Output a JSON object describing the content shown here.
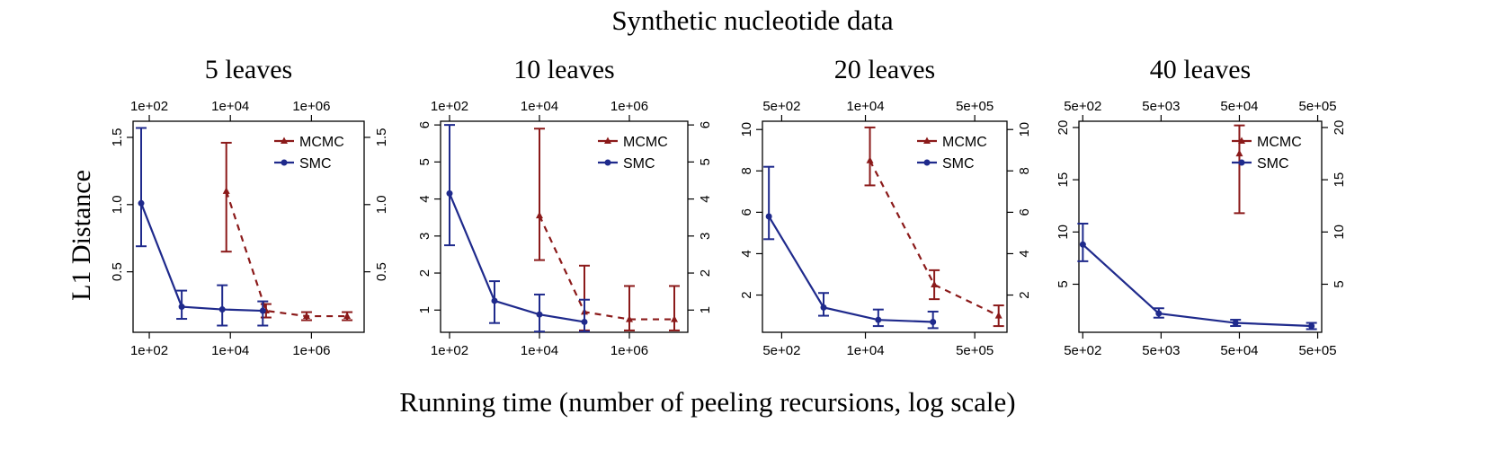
{
  "figure": {
    "title": "Synthetic nucleotide data",
    "ylabel": "L1 Distance",
    "xlabel": "Running time (number of peeling recursions, log scale)"
  },
  "colors": {
    "mcmc": "#8B1A1A",
    "smc": "#1F2A8C",
    "axis": "#000000"
  },
  "chart_data": [
    {
      "type": "line",
      "title": "5 leaves",
      "xscale": "log",
      "xlim": [
        1.6,
        7.3
      ],
      "ylim": [
        0.05,
        1.62
      ],
      "x_ticks": [
        2,
        4,
        6
      ],
      "x_tick_labels": [
        "1e+02",
        "1e+04",
        "1e+06"
      ],
      "y_ticks": [
        0.5,
        1.0,
        1.5
      ],
      "y_tick_labels": [
        "0.5",
        "1.0",
        "1.5"
      ],
      "legend": "top-right",
      "series": [
        {
          "name": "MCMC",
          "line": "dashed",
          "marker": "triangle",
          "x": [
            3.9,
            4.88,
            5.88,
            6.88
          ],
          "y": [
            1.1,
            0.21,
            0.17,
            0.17
          ],
          "err_low": [
            0.65,
            0.16,
            0.14,
            0.14
          ],
          "err_high": [
            1.46,
            0.26,
            0.2,
            0.2
          ]
        },
        {
          "name": "SMC",
          "line": "solid",
          "marker": "circle",
          "x": [
            1.8,
            2.8,
            3.8,
            4.8
          ],
          "y": [
            1.01,
            0.24,
            0.22,
            0.21
          ],
          "err_low": [
            0.69,
            0.15,
            0.1,
            0.1
          ],
          "err_high": [
            1.57,
            0.36,
            0.4,
            0.28
          ]
        }
      ]
    },
    {
      "type": "line",
      "title": "10 leaves",
      "xscale": "log",
      "xlim": [
        1.8,
        7.3
      ],
      "ylim": [
        0.4,
        6.1
      ],
      "x_ticks": [
        2,
        4,
        6
      ],
      "x_tick_labels": [
        "1e+02",
        "1e+04",
        "1e+06"
      ],
      "y_ticks": [
        1,
        2,
        3,
        4,
        5,
        6
      ],
      "y_tick_labels": [
        "1",
        "2",
        "3",
        "4",
        "5",
        "6"
      ],
      "legend": "top-right",
      "series": [
        {
          "name": "MCMC",
          "line": "dashed",
          "marker": "triangle",
          "x": [
            4,
            5,
            6,
            7
          ],
          "y": [
            3.55,
            0.95,
            0.75,
            0.75
          ],
          "err_low": [
            2.35,
            0.45,
            0.45,
            0.45
          ],
          "err_high": [
            5.9,
            2.2,
            1.65,
            1.65
          ]
        },
        {
          "name": "SMC",
          "line": "solid",
          "marker": "circle",
          "x": [
            2,
            3,
            4,
            5
          ],
          "y": [
            4.15,
            1.25,
            0.88,
            0.68
          ],
          "err_low": [
            2.75,
            0.65,
            0.42,
            0.42
          ],
          "err_high": [
            6.0,
            1.78,
            1.42,
            1.28
          ]
        }
      ]
    },
    {
      "type": "line",
      "title": "20 leaves",
      "xscale": "log",
      "xlim": [
        2.4,
        6.2
      ],
      "ylim": [
        0.2,
        10.4
      ],
      "x_ticks": [
        2.699,
        4.0,
        5.699
      ],
      "x_tick_labels": [
        "5e+02",
        "1e+04",
        "5e+05"
      ],
      "y_ticks": [
        2,
        4,
        6,
        8,
        10
      ],
      "y_tick_labels": [
        "2",
        "4",
        "6",
        "8",
        "10"
      ],
      "legend": "top-right",
      "series": [
        {
          "name": "MCMC",
          "line": "dashed",
          "marker": "triangle",
          "x": [
            4.07,
            5.07,
            6.07
          ],
          "y": [
            8.5,
            2.5,
            1.0
          ],
          "err_low": [
            7.3,
            1.8,
            0.5
          ],
          "err_high": [
            10.1,
            3.2,
            1.5
          ]
        },
        {
          "name": "SMC",
          "line": "solid",
          "marker": "circle",
          "x": [
            2.5,
            3.35,
            4.2,
            5.05
          ],
          "y": [
            5.8,
            1.4,
            0.8,
            0.7
          ],
          "err_low": [
            4.7,
            1.0,
            0.5,
            0.4
          ],
          "err_high": [
            8.2,
            2.1,
            1.3,
            1.2
          ]
        }
      ]
    },
    {
      "type": "line",
      "title": "40 leaves",
      "xscale": "log",
      "xlim": [
        2.65,
        5.75
      ],
      "ylim": [
        0.4,
        20.6
      ],
      "x_ticks": [
        2.699,
        3.699,
        4.699,
        5.699
      ],
      "x_tick_labels": [
        "5e+02",
        "5e+03",
        "5e+04",
        "5e+05"
      ],
      "y_ticks": [
        5,
        10,
        15,
        20
      ],
      "y_tick_labels": [
        "5",
        "10",
        "15",
        "20"
      ],
      "legend": "top-right",
      "series": [
        {
          "name": "MCMC",
          "line": "dashed",
          "marker": "triangle",
          "x": [
            4.699
          ],
          "y": [
            17.5
          ],
          "err_low": [
            11.8
          ],
          "err_high": [
            20.2
          ]
        },
        {
          "name": "SMC",
          "line": "solid",
          "marker": "circle",
          "x": [
            2.7,
            3.67,
            4.65,
            5.62
          ],
          "y": [
            8.8,
            2.2,
            1.3,
            1.0
          ],
          "err_low": [
            7.2,
            1.8,
            1.0,
            0.7
          ],
          "err_high": [
            10.8,
            2.7,
            1.6,
            1.3
          ]
        }
      ]
    }
  ]
}
